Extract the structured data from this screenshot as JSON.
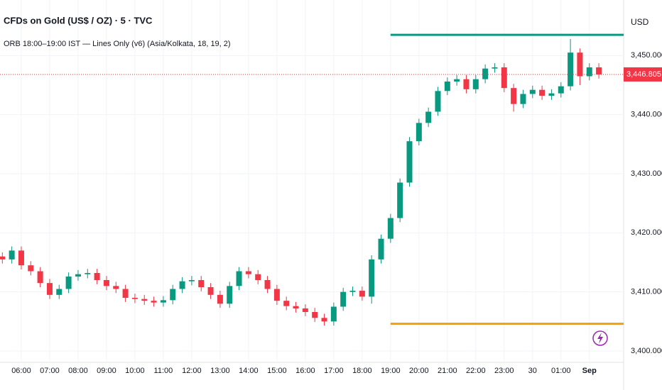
{
  "chart_data": {
    "type": "candlestick",
    "title": "CFDs on Gold (US$ / OZ) · 5 · TVC",
    "subtitle": "ORB 18:00–19:00 IST — Lines Only (v6) (Asia/Kolkata, 18, 19, 2)",
    "y_label": "USD",
    "categories": [
      null,
      null,
      "06:00",
      null,
      null,
      "07:00",
      null,
      null,
      "08:00",
      null,
      null,
      "09:00",
      null,
      null,
      "10:00",
      null,
      null,
      "11:00",
      null,
      null,
      "12:00",
      null,
      null,
      "13:00",
      null,
      null,
      "14:00",
      null,
      null,
      "15:00",
      null,
      null,
      "16:00",
      null,
      null,
      "17:00",
      null,
      null,
      "18:00",
      null,
      null,
      "19:00",
      null,
      null,
      "20:00",
      null,
      null,
      "21:00",
      null,
      null,
      "22:00",
      null,
      null,
      "23:00",
      null,
      null,
      "30",
      null,
      null,
      "01:00",
      null,
      null,
      "Sep",
      null
    ],
    "open": [
      3416,
      3415.5,
      3417,
      3414.5,
      3413.5,
      3411.5,
      3409.5,
      3410.5,
      3412.6,
      3413,
      3413.2,
      3412,
      3411,
      3410.5,
      3409,
      3408.8,
      3408.5,
      3408.2,
      3408.6,
      3410.5,
      3411.8,
      3412,
      3410.8,
      3409.5,
      3408,
      3411,
      3413.5,
      3413,
      3412,
      3410.5,
      3408.5,
      3407.6,
      3407.2,
      3406.6,
      3405.6,
      3405,
      3407.5,
      3410,
      3410.2,
      3409.2,
      3415.5,
      3419,
      3422.5,
      3428.5,
      3435.5,
      3438.6,
      3440.5,
      3444,
      3445.6,
      3446,
      3444.3,
      3446,
      3447.8,
      3448,
      3444.5,
      3441.8,
      3443.5,
      3444.2,
      3443.2,
      3443.6,
      3444.8,
      3450.5,
      3446.5,
      3448
    ],
    "high": [
      3416.7,
      3417.7,
      3417.7,
      3415.2,
      3414.2,
      3412.2,
      3411.2,
      3413.3,
      3413.7,
      3413.9,
      3413.9,
      3412.7,
      3411.7,
      3411.2,
      3409.7,
      3409.5,
      3409.2,
      3409.3,
      3411.2,
      3412.5,
      3412.7,
      3412.7,
      3411.5,
      3410.2,
      3411.7,
      3414.2,
      3414.2,
      3413.7,
      3412.7,
      3411.2,
      3409.2,
      3408.3,
      3407.9,
      3407.3,
      3406.3,
      3408.2,
      3410.7,
      3410.9,
      3410.9,
      3416.2,
      3419.7,
      3423.2,
      3429.2,
      3436.2,
      3439.3,
      3441.2,
      3444.7,
      3446.3,
      3446.7,
      3446.7,
      3446.7,
      3448.5,
      3448.7,
      3448.7,
      3445.2,
      3444.2,
      3444.9,
      3444.9,
      3444.3,
      3445.5,
      3452.8,
      3451.2,
      3448.7,
      3448.7
    ],
    "low": [
      3414.8,
      3414.8,
      3413.8,
      3412.8,
      3410.8,
      3408.8,
      3408.8,
      3409.8,
      3411.9,
      3412.3,
      3411.3,
      3410.3,
      3409.8,
      3408.3,
      3408.1,
      3407.8,
      3407.5,
      3407.5,
      3407.9,
      3409.8,
      3411.1,
      3410.1,
      3408.8,
      3407.3,
      3407.3,
      3410.3,
      3412.3,
      3411.3,
      3409.8,
      3407.8,
      3406.9,
      3406.5,
      3405.9,
      3404.9,
      3404.3,
      3404.3,
      3406.8,
      3409.3,
      3408.5,
      3408,
      3414.8,
      3418.3,
      3421.8,
      3427.8,
      3434.8,
      3437.9,
      3439.8,
      3443.3,
      3444.9,
      3443.6,
      3443.6,
      3445.3,
      3447.1,
      3443.8,
      3440.5,
      3441.1,
      3442.8,
      3442.5,
      3442.5,
      3442.9,
      3444.1,
      3445,
      3445.8,
      3446.1
    ],
    "close": [
      3415.5,
      3417,
      3414.5,
      3413.5,
      3411.5,
      3409.5,
      3410.5,
      3412.6,
      3413,
      3413.2,
      3412,
      3411,
      3410.5,
      3409,
      3408.8,
      3408.5,
      3408.2,
      3408.6,
      3410.5,
      3411.8,
      3412,
      3410.8,
      3409.5,
      3408,
      3411,
      3413.5,
      3413,
      3412,
      3410.5,
      3408.5,
      3407.6,
      3407.2,
      3406.6,
      3405.6,
      3405,
      3407.5,
      3410,
      3410.2,
      3409.2,
      3415.5,
      3419,
      3422.5,
      3428.5,
      3435.5,
      3438.6,
      3440.5,
      3444,
      3445.6,
      3446,
      3444.3,
      3446,
      3447.8,
      3448,
      3444.5,
      3441.8,
      3443.5,
      3444.2,
      3443.2,
      3443.6,
      3444.8,
      3450.5,
      3446.5,
      3448,
      3446.8
    ],
    "up_color": "#089981",
    "down_color": "#f23645",
    "ylim": [
      3397.6,
      3459.4
    ],
    "yticks": [
      {
        "value": 3400,
        "label": "3,400.000"
      },
      {
        "value": 3410,
        "label": "3,410.000"
      },
      {
        "value": 3420,
        "label": "3,420.000"
      },
      {
        "value": 3430,
        "label": "3,430.000"
      },
      {
        "value": 3440,
        "label": "3,440.000"
      },
      {
        "value": 3450,
        "label": "3,450.000"
      }
    ],
    "last_price": {
      "value": 3446.805,
      "label": "3,446.805"
    },
    "levels": [
      {
        "value": 3453.5,
        "color": "#089981"
      },
      {
        "value": 3404.6,
        "color": "#f59f00"
      }
    ],
    "grid": true
  }
}
